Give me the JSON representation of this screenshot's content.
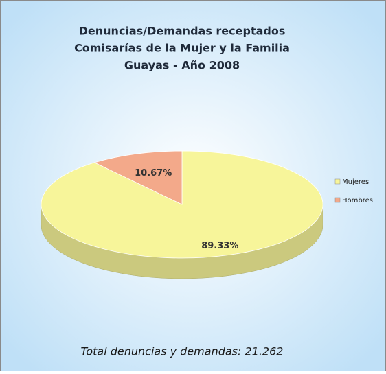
{
  "chart_data": {
    "type": "pie",
    "title": [
      "Denuncias/Demandas receptados",
      "Comisarías de la Mujer y la Familia",
      "Guayas - Año 2008"
    ],
    "categories": [
      "Mujeres",
      "Hombres"
    ],
    "values": [
      89.33,
      10.67
    ],
    "value_labels": [
      "89.33%",
      "10.67%"
    ],
    "colors": [
      "#f7f59a",
      "#f3a98a"
    ],
    "legend": "right",
    "annotation": "Total denuncias y demandas: 21.262"
  }
}
